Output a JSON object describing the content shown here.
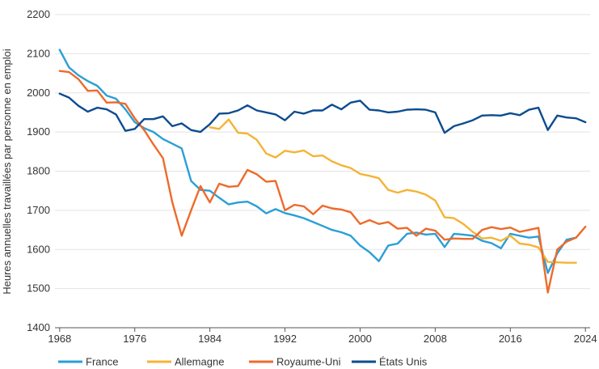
{
  "chart_data": {
    "type": "line",
    "title": "",
    "xlabel": "",
    "ylabel": "Heures annuelles travaillées par personne en emploi",
    "xlim": [
      1967.5,
      2024.5
    ],
    "ylim": [
      1400,
      2200
    ],
    "x_ticks": [
      1968,
      1976,
      1984,
      1992,
      2000,
      2008,
      2016,
      2024
    ],
    "y_ticks": [
      1400,
      1500,
      1600,
      1700,
      1800,
      1900,
      2000,
      2100,
      2200
    ],
    "grid": "horizontal",
    "legend_position": "bottom",
    "series": [
      {
        "name": "France",
        "color": "#2a9fd6",
        "x": [
          1968,
          1969,
          1970,
          1971,
          1972,
          1973,
          1974,
          1975,
          1976,
          1977,
          1978,
          1979,
          1980,
          1981,
          1982,
          1983,
          1984,
          1985,
          1986,
          1987,
          1988,
          1989,
          1990,
          1991,
          1992,
          1993,
          1994,
          1995,
          1996,
          1997,
          1998,
          1999,
          2000,
          2001,
          2002,
          2003,
          2004,
          2005,
          2006,
          2007,
          2008,
          2009,
          2010,
          2011,
          2012,
          2013,
          2014,
          2015,
          2016,
          2017,
          2018,
          2019,
          2020,
          2021,
          2022,
          2023
        ],
        "y": [
          2110,
          2065,
          2045,
          2030,
          2018,
          1993,
          1985,
          1958,
          1925,
          1910,
          1900,
          1882,
          1870,
          1858,
          1775,
          1752,
          1750,
          1732,
          1715,
          1720,
          1722,
          1710,
          1692,
          1703,
          1693,
          1687,
          1680,
          1670,
          1660,
          1650,
          1644,
          1635,
          1610,
          1593,
          1570,
          1610,
          1615,
          1640,
          1643,
          1638,
          1640,
          1606,
          1640,
          1638,
          1635,
          1622,
          1616,
          1603,
          1640,
          1635,
          1630,
          1633,
          1540,
          1590,
          1625,
          1630
        ]
      },
      {
        "name": "Allemagne",
        "color": "#f5b335",
        "x": [
          1984,
          1985,
          1986,
          1987,
          1988,
          1989,
          1990,
          1991,
          1992,
          1993,
          1994,
          1995,
          1996,
          1997,
          1998,
          1999,
          2000,
          2001,
          2002,
          2003,
          2004,
          2005,
          2006,
          2007,
          2008,
          2009,
          2010,
          2011,
          2012,
          2013,
          2014,
          2015,
          2016,
          2017,
          2018,
          2019,
          2020,
          2021,
          2022,
          2023
        ],
        "y": [
          1912,
          1908,
          1932,
          1898,
          1896,
          1880,
          1845,
          1835,
          1852,
          1848,
          1853,
          1838,
          1840,
          1825,
          1815,
          1808,
          1793,
          1788,
          1782,
          1752,
          1745,
          1752,
          1748,
          1740,
          1725,
          1682,
          1680,
          1665,
          1645,
          1628,
          1630,
          1622,
          1635,
          1615,
          1612,
          1605,
          1568,
          1567,
          1566,
          1566
        ]
      },
      {
        "name": "Royaume-Uni",
        "color": "#ee6a2b",
        "x": [
          1968,
          1969,
          1970,
          1971,
          1972,
          1973,
          1974,
          1975,
          1976,
          1977,
          1978,
          1979,
          1980,
          1981,
          1982,
          1983,
          1984,
          1985,
          1986,
          1987,
          1988,
          1989,
          1990,
          1991,
          1992,
          1993,
          1994,
          1995,
          1996,
          1997,
          1998,
          1999,
          2000,
          2001,
          2002,
          2003,
          2004,
          2005,
          2006,
          2007,
          2008,
          2009,
          2010,
          2011,
          2012,
          2013,
          2014,
          2015,
          2016,
          2017,
          2018,
          2019,
          2020,
          2021,
          2022,
          2023,
          2024
        ],
        "y": [
          2056,
          2053,
          2035,
          2005,
          2006,
          1975,
          1976,
          1972,
          1935,
          1905,
          1868,
          1833,
          1720,
          1635,
          1700,
          1762,
          1720,
          1768,
          1760,
          1762,
          1803,
          1792,
          1773,
          1775,
          1700,
          1714,
          1710,
          1690,
          1712,
          1705,
          1702,
          1695,
          1665,
          1675,
          1665,
          1670,
          1653,
          1655,
          1635,
          1653,
          1648,
          1625,
          1628,
          1627,
          1627,
          1650,
          1657,
          1652,
          1656,
          1645,
          1650,
          1655,
          1490,
          1600,
          1620,
          1630,
          1658
        ]
      },
      {
        "name": "États Unis",
        "color": "#0d4c8f",
        "x": [
          1968,
          1969,
          1970,
          1971,
          1972,
          1973,
          1974,
          1975,
          1976,
          1977,
          1978,
          1979,
          1980,
          1981,
          1982,
          1983,
          1984,
          1985,
          1986,
          1987,
          1988,
          1989,
          1990,
          1991,
          1992,
          1993,
          1994,
          1995,
          1996,
          1997,
          1998,
          1999,
          2000,
          2001,
          2002,
          2003,
          2004,
          2005,
          2006,
          2007,
          2008,
          2009,
          2010,
          2011,
          2012,
          2013,
          2014,
          2015,
          2016,
          2017,
          2018,
          2019,
          2020,
          2021,
          2022,
          2023,
          2024
        ],
        "y": [
          1998,
          1988,
          1967,
          1952,
          1962,
          1958,
          1945,
          1903,
          1908,
          1933,
          1933,
          1940,
          1915,
          1922,
          1905,
          1900,
          1920,
          1947,
          1948,
          1955,
          1968,
          1955,
          1950,
          1945,
          1930,
          1952,
          1947,
          1955,
          1955,
          1970,
          1958,
          1975,
          1980,
          1957,
          1955,
          1950,
          1952,
          1957,
          1958,
          1957,
          1950,
          1898,
          1915,
          1922,
          1930,
          1942,
          1943,
          1942,
          1948,
          1943,
          1957,
          1962,
          1905,
          1942,
          1937,
          1935,
          1925
        ]
      }
    ]
  }
}
